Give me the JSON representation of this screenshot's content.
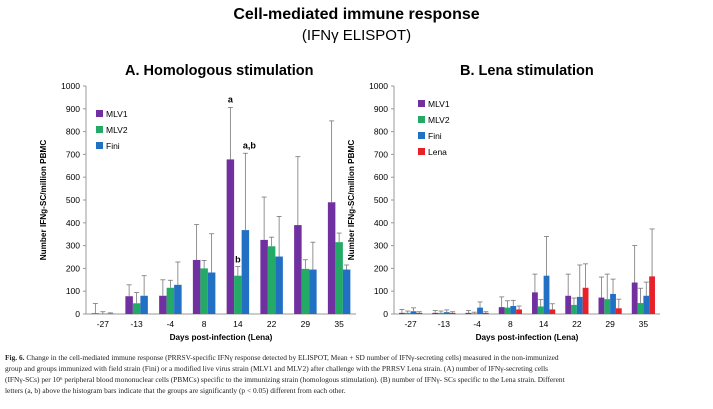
{
  "figure": {
    "title": "Cell-mediated immune response",
    "subtitle": "(IFNγ ELISPOT)"
  },
  "chart_data": [
    {
      "panel": "A",
      "type": "bar",
      "title": "A.  Homologous stimulation",
      "xlabel": "Days post-infection (Lena)",
      "ylabel": "Number IFNg-SC/million PBMC",
      "ylim": [
        0,
        1000
      ],
      "ytick_step": 100,
      "legend_position": "top-left",
      "categories": [
        "-27",
        "-13",
        "-4",
        "8",
        "14",
        "22",
        "29",
        "35"
      ],
      "series": [
        {
          "name": "MLV1",
          "color": "#7030a0",
          "values": [
            3,
            78,
            80,
            237,
            678,
            325,
            390,
            490
          ],
          "sd": [
            43,
            50,
            70,
            155,
            228,
            188,
            300,
            357
          ]
        },
        {
          "name": "MLV2",
          "color": "#22aa66",
          "values": [
            2,
            47,
            115,
            200,
            168,
            297,
            198,
            315
          ],
          "sd": [
            8,
            47,
            33,
            35,
            40,
            40,
            40,
            40
          ]
        },
        {
          "name": "Fini",
          "color": "#2270c4",
          "values": [
            2,
            80,
            128,
            182,
            368,
            252,
            195,
            195
          ],
          "sd": [
            3,
            88,
            100,
            170,
            337,
            176,
            120,
            20
          ]
        }
      ],
      "annotations": [
        {
          "category": "14",
          "series": "MLV1",
          "text": "a"
        },
        {
          "category": "14",
          "series": "Fini",
          "text": "a,b"
        },
        {
          "category": "14",
          "series": "MLV2",
          "text": "b"
        }
      ]
    },
    {
      "panel": "B",
      "type": "bar",
      "title": "B.  Lena stimulation",
      "xlabel": "Days post-infection (Lena)",
      "ylabel": "Number IFNg-SC/million PBMC",
      "ylim": [
        0,
        1000
      ],
      "ytick_step": 100,
      "legend_position": "top-left",
      "categories": [
        "-27",
        "-13",
        "-4",
        "8",
        "14",
        "22",
        "29",
        "35"
      ],
      "series": [
        {
          "name": "MLV1",
          "color": "#7030a0",
          "values": [
            5,
            5,
            5,
            30,
            95,
            80,
            72,
            138
          ],
          "sd": [
            15,
            10,
            10,
            45,
            80,
            95,
            90,
            162
          ]
        },
        {
          "name": "MLV2",
          "color": "#22aa66",
          "values": [
            5,
            5,
            3,
            28,
            33,
            40,
            65,
            48
          ],
          "sd": [
            8,
            8,
            5,
            30,
            30,
            30,
            110,
            65
          ]
        },
        {
          "name": "Fini",
          "color": "#2270c4",
          "values": [
            12,
            8,
            28,
            35,
            168,
            75,
            88,
            80
          ],
          "sd": [
            15,
            10,
            25,
            25,
            172,
            140,
            65,
            60
          ]
        },
        {
          "name": "Lena",
          "color": "#e8202a",
          "values": [
            5,
            5,
            5,
            20,
            20,
            115,
            25,
            165
          ],
          "sd": [
            5,
            5,
            5,
            15,
            25,
            105,
            40,
            208
          ]
        }
      ]
    }
  ],
  "caption": {
    "label": "Fig. 6.",
    "line1": "Change in the cell-mediated immune response (PRRSV-specific IFNγ response detected by ELISPOT, Mean + SD number of IFNγ-secreting cells) measured in the non-immunized",
    "line2": "group and groups immunized with field strain (Fini) or a modified live virus strain (MLV1 and MLV2) after challenge with the PRRSV Lena strain. (A) number of IFNγ-secreting cells",
    "line3": "(IFNγ-SCs) per 10⁶ peripheral blood mononuclear cells (PBMCs) specific to the immunizing strain (homologous stimulation). (B) number of IFNγ- SCs specific to the Lena strain. Different",
    "line4": "letters (a, b) above the histogram bars indicate that the groups are significantly (p < 0.05) different from each other."
  }
}
